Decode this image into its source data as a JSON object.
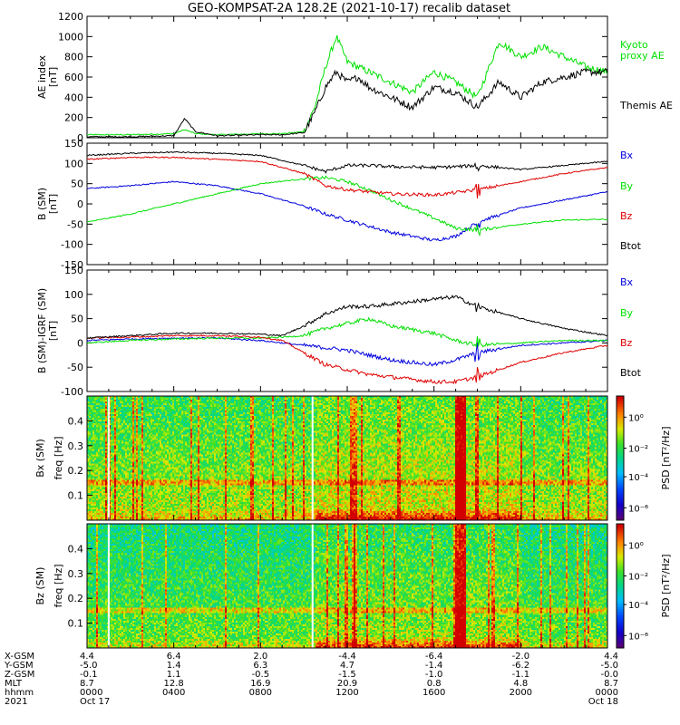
{
  "title": "GEO-KOMPSAT-2A 128.2E (2021-10-17) recalib dataset",
  "colors": {
    "kyoto": "#00e000",
    "themis": "#000000",
    "bx": "#0000dd",
    "by": "#00e000",
    "bz": "#e00000",
    "btot": "#000000"
  },
  "panels": [
    {
      "id": "ae",
      "ylabel": "AE index",
      "yunit": "[nT]",
      "ylim": [
        0,
        1200
      ],
      "yticks": [
        0,
        200,
        400,
        600,
        800,
        1000,
        1200
      ],
      "legend": [
        {
          "label": "Kyoto",
          "color": "#00e000"
        },
        {
          "label": "proxy AE",
          "color": "#00e000"
        },
        {
          "label": "Themis AE",
          "color": "#000000"
        }
      ]
    },
    {
      "id": "bsm",
      "ylabel": "B (SM)",
      "yunit": "[nT]",
      "ylim": [
        -150,
        150
      ],
      "yticks": [
        -150,
        -100,
        -50,
        0,
        50,
        100,
        150
      ],
      "legend": [
        {
          "label": "Bx",
          "color": "#0000dd"
        },
        {
          "label": "By",
          "color": "#00e000"
        },
        {
          "label": "Bz",
          "color": "#e00000"
        },
        {
          "label": "Btot",
          "color": "#000000"
        }
      ]
    },
    {
      "id": "bigrf",
      "ylabel": "B (SM)-IGRF (SM)",
      "yunit": "[nT]",
      "ylim": [
        -100,
        150
      ],
      "yticks": [
        -100,
        -50,
        0,
        50,
        100,
        150
      ],
      "legend": [
        {
          "label": "Bx",
          "color": "#0000dd"
        },
        {
          "label": "By",
          "color": "#00e000"
        },
        {
          "label": "Bz",
          "color": "#e00000"
        },
        {
          "label": "Btot",
          "color": "#000000"
        }
      ]
    }
  ],
  "spectrograms": [
    {
      "id": "bx-spec",
      "ylabel": "Bx (SM)",
      "yunit": "freq [Hz]",
      "yticks": [
        "0.1",
        "0.2",
        "0.3",
        "0.4"
      ]
    },
    {
      "id": "bz-spec",
      "ylabel": "Bz (SM)",
      "yunit": "freq [Hz]",
      "yticks": [
        "0.1",
        "0.2",
        "0.3",
        "0.4"
      ]
    }
  ],
  "colorbar": {
    "label": "PSD [nT²/Hz]",
    "ticks": [
      "10⁰",
      "10⁻²",
      "10⁻⁴",
      "10⁻⁶"
    ]
  },
  "xaxis": {
    "row_labels": [
      "X-GSM",
      "Y-GSM",
      "Z-GSM",
      "MLT",
      "hhmm",
      "2021"
    ],
    "columns": [
      [
        "4.4",
        "-5.0",
        "-0.1",
        "8.7",
        "0000",
        "Oct 17"
      ],
      [
        "6.4",
        "1.4",
        "1.1",
        "12.8",
        "0400",
        ""
      ],
      [
        "2.0",
        "6.3",
        "-0.5",
        "16.9",
        "0800",
        ""
      ],
      [
        "-4.4",
        "4.7",
        "-1.5",
        "20.9",
        "1200",
        ""
      ],
      [
        "-6.4",
        "-1.4",
        "-1.0",
        "0.8",
        "1600",
        ""
      ],
      [
        "-2.0",
        "-6.2",
        "-1.1",
        "4.8",
        "2000",
        ""
      ],
      [
        "4.4",
        "-5.0",
        "-0.0",
        "8.7",
        "0000",
        "Oct 18"
      ]
    ]
  },
  "chart_data": [
    {
      "type": "line",
      "title": "GEO-KOMPSAT-2A 128.2E (2021-10-17) recalib dataset",
      "xlabel": "hhmm",
      "ylabel": "AE index [nT]",
      "x_hours": [
        0,
        2,
        4,
        4.5,
        5,
        6,
        8,
        9,
        10,
        10.5,
        11,
        11.5,
        12,
        12.5,
        13,
        14,
        15,
        16,
        17,
        18,
        19,
        20,
        21,
        22,
        23,
        24
      ],
      "ylim": [
        0,
        1200
      ],
      "series": [
        {
          "name": "Kyoto proxy AE",
          "values": [
            30,
            30,
            40,
            80,
            40,
            30,
            40,
            40,
            60,
            300,
            700,
            1000,
            750,
            700,
            650,
            550,
            450,
            650,
            550,
            400,
            950,
            800,
            900,
            800,
            700,
            650
          ]
        },
        {
          "name": "Themis AE",
          "values": [
            10,
            10,
            20,
            190,
            60,
            20,
            30,
            30,
            50,
            250,
            500,
            650,
            550,
            600,
            500,
            400,
            300,
            500,
            450,
            300,
            550,
            400,
            550,
            600,
            650,
            650
          ]
        }
      ]
    },
    {
      "type": "line",
      "xlabel": "hhmm",
      "ylabel": "B (SM) [nT]",
      "x_hours": [
        0,
        2,
        4,
        6,
        8,
        10,
        11,
        12,
        13,
        14,
        16,
        17,
        18,
        20,
        22,
        24
      ],
      "ylim": [
        -150,
        150
      ],
      "series": [
        {
          "name": "Bx",
          "values": [
            38,
            45,
            55,
            45,
            25,
            -5,
            -25,
            -40,
            -55,
            -70,
            -90,
            -80,
            -45,
            -10,
            10,
            30
          ]
        },
        {
          "name": "By",
          "values": [
            -45,
            -25,
            0,
            25,
            50,
            62,
            65,
            55,
            35,
            10,
            -35,
            -60,
            -65,
            -50,
            -40,
            -38
          ]
        },
        {
          "name": "Bz",
          "values": [
            110,
            115,
            115,
            110,
            105,
            75,
            45,
            35,
            30,
            25,
            22,
            28,
            35,
            55,
            75,
            90
          ]
        },
        {
          "name": "Btot",
          "values": [
            120,
            125,
            128,
            125,
            120,
            95,
            80,
            95,
            95,
            92,
            90,
            92,
            95,
            85,
            95,
            105
          ]
        }
      ]
    },
    {
      "type": "line",
      "xlabel": "hhmm",
      "ylabel": "B (SM)-IGRF (SM) [nT]",
      "x_hours": [
        0,
        2,
        4,
        6,
        8,
        9,
        10,
        11,
        12,
        13,
        14,
        16,
        17,
        18,
        20,
        22,
        24
      ],
      "ylim": [
        -100,
        150
      ],
      "series": [
        {
          "name": "Bx",
          "values": [
            5,
            8,
            10,
            10,
            5,
            0,
            -5,
            -10,
            -15,
            -25,
            -35,
            -45,
            -35,
            -20,
            -5,
            0,
            5
          ]
        },
        {
          "name": "By",
          "values": [
            0,
            5,
            8,
            10,
            10,
            12,
            15,
            30,
            40,
            50,
            35,
            20,
            5,
            -5,
            0,
            5,
            5
          ]
        },
        {
          "name": "Bz",
          "values": [
            10,
            12,
            15,
            15,
            12,
            5,
            -20,
            -45,
            -55,
            -65,
            -70,
            -80,
            -80,
            -70,
            -40,
            -20,
            -5
          ]
        },
        {
          "name": "Btot",
          "values": [
            10,
            15,
            20,
            20,
            18,
            15,
            35,
            60,
            75,
            75,
            80,
            90,
            95,
            75,
            50,
            30,
            15
          ]
        }
      ]
    },
    {
      "type": "heatmap",
      "ylabel": "Bx (SM) freq [Hz]",
      "xlabel": "hhmm",
      "y_range": [
        0,
        0.5
      ],
      "color_scale": "PSD [nT²/Hz]"
    },
    {
      "type": "heatmap",
      "ylabel": "Bz (SM) freq [Hz]",
      "xlabel": "hhmm",
      "y_range": [
        0,
        0.5
      ],
      "color_scale": "PSD [nT²/Hz]"
    }
  ]
}
